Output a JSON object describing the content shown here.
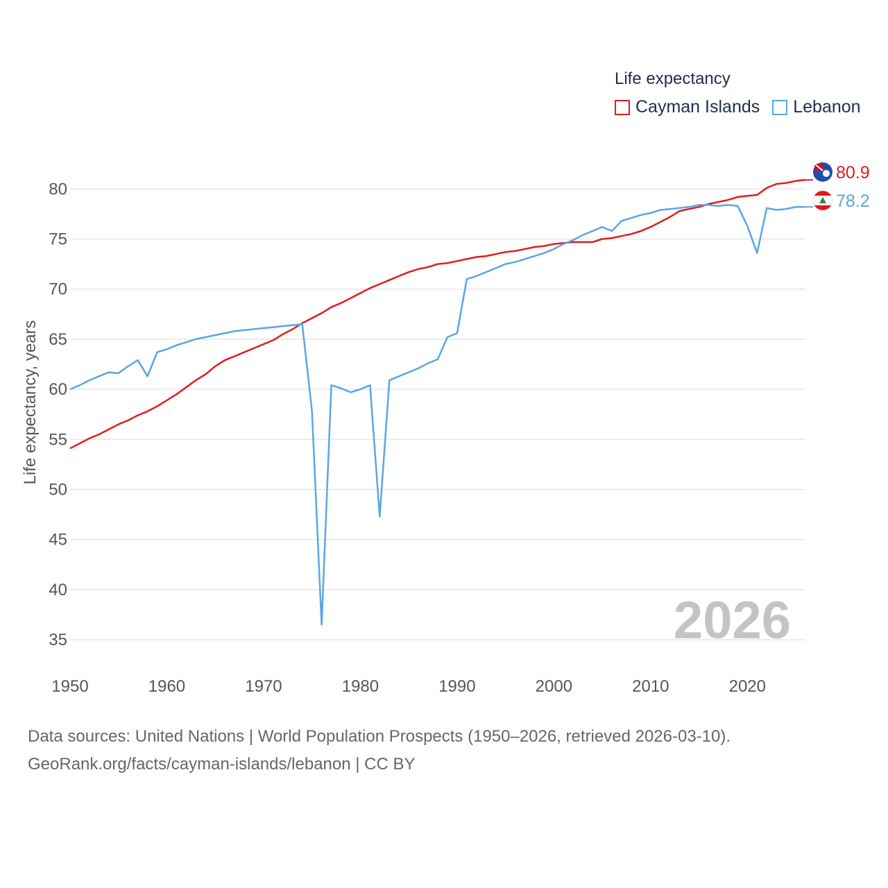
{
  "legend": {
    "title": "Life expectancy",
    "items": [
      {
        "label": "Cayman Islands",
        "color": "#e31a1c"
      },
      {
        "label": "Lebanon",
        "color": "#5aa5e6"
      }
    ]
  },
  "source": {
    "line1": "Data sources: United Nations | World Population Prospects (1950–2026, retrieved 2026-03-10).",
    "line2": "GeoRank.org/facts/cayman-islands/lebanon | CC BY"
  },
  "chart_data": {
    "type": "line",
    "title": "Life expectancy",
    "xlabel": "",
    "ylabel": "Life expectancy, years",
    "xlim": [
      1950,
      2026
    ],
    "ylim": [
      33,
      83
    ],
    "xticks": [
      "1950",
      "1960",
      "1970",
      "1980",
      "1990",
      "2000",
      "2010",
      "2020"
    ],
    "yticks": [
      "35",
      "40",
      "45",
      "50",
      "55",
      "60",
      "65",
      "70",
      "75",
      "80"
    ],
    "grid": true,
    "legend_position": "top-right",
    "annotation_year": "2026",
    "series": [
      {
        "name": "Cayman Islands",
        "color": "#e31a1c",
        "icon": "cayman-islands-flag-icon",
        "end_label": "80.9",
        "x": [
          1950,
          1951,
          1952,
          1953,
          1954,
          1955,
          1956,
          1957,
          1958,
          1959,
          1960,
          1961,
          1962,
          1963,
          1964,
          1965,
          1966,
          1967,
          1968,
          1969,
          1970,
          1971,
          1972,
          1973,
          1974,
          1975,
          1976,
          1977,
          1978,
          1979,
          1980,
          1981,
          1982,
          1983,
          1984,
          1985,
          1986,
          1987,
          1988,
          1989,
          1990,
          1991,
          1992,
          1993,
          1994,
          1995,
          1996,
          1997,
          1998,
          1999,
          2000,
          2001,
          2002,
          2003,
          2004,
          2005,
          2006,
          2007,
          2008,
          2009,
          2010,
          2011,
          2012,
          2013,
          2014,
          2015,
          2016,
          2017,
          2018,
          2019,
          2020,
          2021,
          2022,
          2023,
          2024,
          2025,
          2026
        ],
        "values": [
          54.1,
          54.6,
          55.1,
          55.5,
          56.0,
          56.5,
          56.9,
          57.4,
          57.8,
          58.3,
          58.9,
          59.5,
          60.2,
          60.9,
          61.5,
          62.3,
          62.9,
          63.3,
          63.7,
          64.1,
          64.5,
          64.9,
          65.5,
          66.0,
          66.6,
          67.1,
          67.6,
          68.2,
          68.6,
          69.1,
          69.6,
          70.1,
          70.5,
          70.9,
          71.3,
          71.7,
          72.0,
          72.2,
          72.5,
          72.6,
          72.8,
          73.0,
          73.2,
          73.3,
          73.5,
          73.7,
          73.8,
          74.0,
          74.2,
          74.3,
          74.5,
          74.6,
          74.7,
          74.7,
          74.7,
          75.0,
          75.1,
          75.3,
          75.5,
          75.8,
          76.2,
          76.7,
          77.2,
          77.8,
          78.0,
          78.2,
          78.5,
          78.7,
          78.9,
          79.2,
          79.3,
          79.4,
          80.1,
          80.5,
          80.6,
          80.8,
          80.9
        ]
      },
      {
        "name": "Lebanon",
        "color": "#5aa5e6",
        "icon": "lebanon-flag-icon",
        "end_label": "78.2",
        "x": [
          1950,
          1951,
          1952,
          1953,
          1954,
          1955,
          1956,
          1957,
          1958,
          1959,
          1960,
          1961,
          1962,
          1963,
          1964,
          1965,
          1966,
          1967,
          1968,
          1969,
          1970,
          1971,
          1972,
          1973,
          1974,
          1975,
          1976,
          1977,
          1978,
          1979,
          1980,
          1981,
          1982,
          1983,
          1984,
          1985,
          1986,
          1987,
          1988,
          1989,
          1990,
          1991,
          1992,
          1993,
          1994,
          1995,
          1996,
          1997,
          1998,
          1999,
          2000,
          2001,
          2002,
          2003,
          2004,
          2005,
          2006,
          2007,
          2008,
          2009,
          2010,
          2011,
          2012,
          2013,
          2014,
          2015,
          2016,
          2017,
          2018,
          2019,
          2020,
          2021,
          2022,
          2023,
          2024,
          2025,
          2026
        ],
        "values": [
          60.0,
          60.4,
          60.9,
          61.3,
          61.7,
          61.6,
          62.3,
          62.9,
          61.3,
          63.7,
          64.0,
          64.4,
          64.7,
          65.0,
          65.2,
          65.4,
          65.6,
          65.8,
          65.9,
          66.0,
          66.1,
          66.2,
          66.3,
          66.4,
          66.5,
          57.8,
          36.5,
          60.4,
          60.1,
          59.7,
          60.0,
          60.4,
          47.3,
          60.9,
          61.3,
          61.7,
          62.1,
          62.6,
          63.0,
          65.2,
          65.6,
          71.0,
          71.3,
          71.7,
          72.1,
          72.5,
          72.7,
          73.0,
          73.3,
          73.6,
          74.0,
          74.5,
          74.9,
          75.4,
          75.8,
          76.2,
          75.8,
          76.8,
          77.1,
          77.4,
          77.6,
          77.9,
          78.0,
          78.1,
          78.2,
          78.4,
          78.4,
          78.3,
          78.4,
          78.3,
          76.3,
          73.6,
          78.1,
          77.9,
          78.0,
          78.2,
          78.2
        ]
      }
    ]
  }
}
